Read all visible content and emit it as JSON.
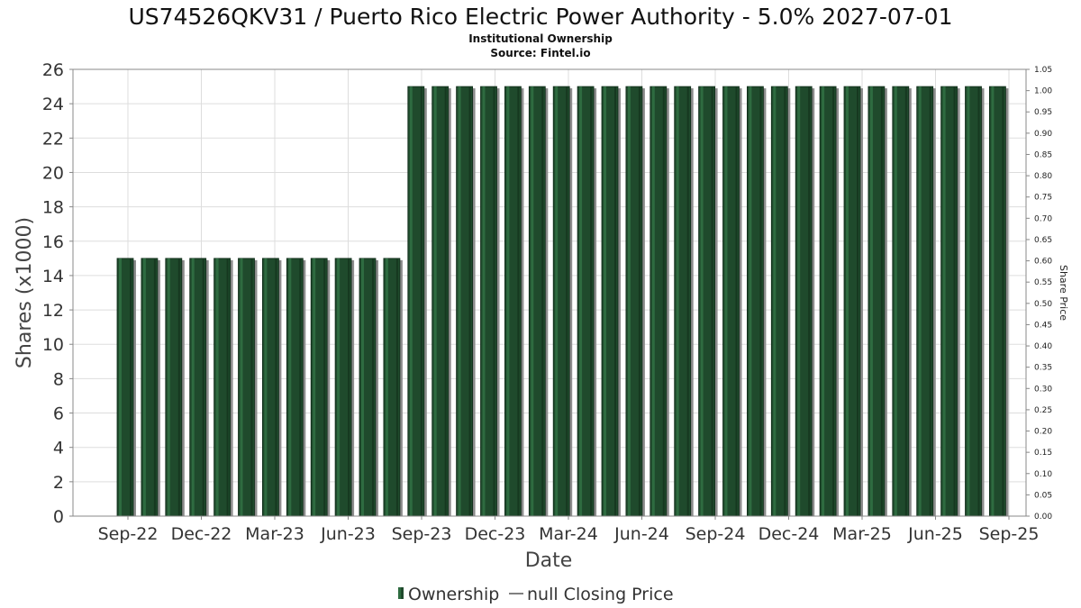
{
  "chart_data": {
    "type": "bar",
    "title": "US74526QKV31 / Puerto Rico Electric Power Authority - 5.0% 2027-07-01",
    "subtitle": "Institutional Ownership",
    "source": "Source: Fintel.io",
    "xlabel": "Date",
    "ylabel": "Shares (x1000)",
    "ylabel_right": "Share Price",
    "ylim": [
      0,
      26
    ],
    "ylim_right": [
      0.0,
      1.05
    ],
    "yticks": [
      "0",
      "2",
      "4",
      "6",
      "8",
      "10",
      "12",
      "14",
      "16",
      "18",
      "20",
      "22",
      "24",
      "26"
    ],
    "yticks_right": [
      "0.00",
      "0.05",
      "0.10",
      "0.15",
      "0.20",
      "0.25",
      "0.30",
      "0.35",
      "0.40",
      "0.45",
      "0.50",
      "0.55",
      "0.60",
      "0.65",
      "0.70",
      "0.75",
      "0.80",
      "0.85",
      "0.90",
      "0.95",
      "1.00",
      "1.05"
    ],
    "xticks": [
      "Sep-22",
      "Dec-22",
      "Mar-23",
      "Jun-23",
      "Sep-23",
      "Dec-23",
      "Mar-24",
      "Jun-24",
      "Sep-24",
      "Dec-24",
      "Mar-25",
      "Jun-25",
      "Sep-25"
    ],
    "grid": true,
    "legend_position": "bottom",
    "colors": {
      "bar": "#1f4a2c",
      "bar_light": "#2e6b40",
      "shadow": "#8c8c8c",
      "grid": "#dddddd",
      "frame": "#888888"
    },
    "series": [
      {
        "name": "Ownership",
        "values": [
          15,
          15,
          15,
          15,
          15,
          15,
          15,
          15,
          15,
          15,
          15,
          15,
          25,
          25,
          25,
          25,
          25,
          25,
          25,
          25,
          25,
          25,
          25,
          25,
          25,
          25,
          25,
          25,
          25,
          25,
          25,
          25,
          25,
          25,
          25,
          25,
          25
        ]
      }
    ]
  },
  "legend": {
    "items": [
      {
        "label": "Ownership",
        "icon": "bar-swatch"
      },
      {
        "label": "null Closing Price",
        "icon": "line-swatch"
      }
    ]
  }
}
